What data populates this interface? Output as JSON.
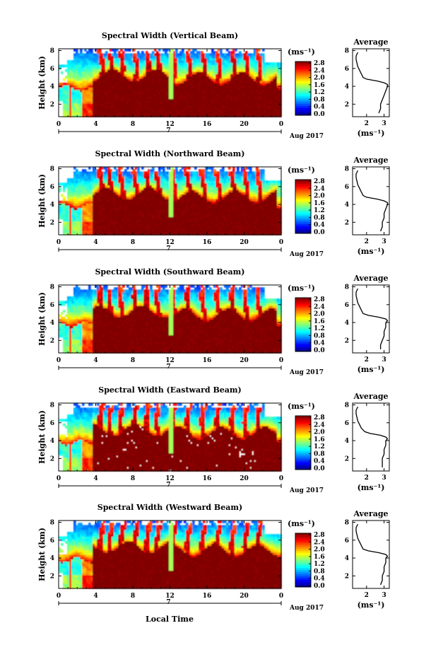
{
  "figure": {
    "bottom_xlabel": "Local Time",
    "colorbar_unit": "(ms⁻¹)",
    "average_title": "Average",
    "average_xlabel": "(ms⁻¹)"
  },
  "chart_data": [
    {
      "type": "heatmap",
      "title": "Spectral Width (Vertical Beam)",
      "ylabel": "Height (km)",
      "xlabel": "",
      "x_ticks": [
        "0",
        "4",
        "8",
        "12",
        "16",
        "20",
        "0"
      ],
      "x_range": [
        0,
        24
      ],
      "date_tick_label": "7",
      "date_label": "Aug 2017",
      "ylim": [
        0.6,
        8.2
      ],
      "y_ticks": [
        "2",
        "4",
        "6",
        "8"
      ],
      "colorbar": {
        "unit": "(ms⁻¹)",
        "ticks": [
          "0.0",
          "0.4",
          "0.8",
          "1.2",
          "1.6",
          "2.0",
          "2.4",
          "2.8"
        ],
        "range": [
          0,
          2.8
        ],
        "colormap": "jet"
      },
      "average_profile": {
        "title": "Average",
        "xlabel": "(ms⁻¹)",
        "x_ticks": [
          "2",
          "3"
        ],
        "xlim": [
          1.2,
          3.3
        ],
        "y_ticks": [
          "2",
          "4",
          "6",
          "8"
        ],
        "ylim": [
          0.6,
          8.2
        ],
        "height": [
          1.0,
          1.5,
          2.0,
          2.5,
          3.0,
          3.5,
          4.0,
          4.2,
          4.4,
          4.6,
          4.8,
          5.0,
          5.4,
          5.8,
          6.2,
          6.6,
          7.0,
          7.4,
          7.8
        ],
        "width": [
          2.7,
          2.8,
          2.8,
          2.9,
          3.0,
          3.1,
          3.2,
          3.2,
          3.0,
          2.6,
          2.0,
          1.8,
          1.7,
          1.6,
          1.5,
          1.45,
          1.4,
          1.4,
          1.5
        ]
      }
    },
    {
      "type": "heatmap",
      "title": "Spectral Width (Northward Beam)",
      "ylabel": "Height (km)",
      "xlabel": "",
      "x_ticks": [
        "0",
        "4",
        "8",
        "12",
        "16",
        "20",
        "0"
      ],
      "x_range": [
        0,
        24
      ],
      "date_tick_label": "7",
      "date_label": "Aug 2017",
      "ylim": [
        0.6,
        8.2
      ],
      "y_ticks": [
        "2",
        "4",
        "6",
        "8"
      ],
      "colorbar": {
        "unit": "(ms⁻¹)",
        "ticks": [
          "0.0",
          "0.4",
          "0.8",
          "1.2",
          "1.6",
          "2.0",
          "2.4",
          "2.8"
        ],
        "range": [
          0,
          2.8
        ],
        "colormap": "jet"
      },
      "average_profile": {
        "title": "Average",
        "xlabel": "(ms⁻¹)",
        "x_ticks": [
          "2",
          "3"
        ],
        "xlim": [
          1.2,
          3.3
        ],
        "y_ticks": [
          "2",
          "4",
          "6",
          "8"
        ],
        "ylim": [
          0.6,
          8.2
        ],
        "height": [
          1.0,
          1.5,
          2.0,
          2.5,
          3.0,
          3.5,
          4.0,
          4.2,
          4.4,
          4.6,
          4.8,
          5.0,
          5.4,
          5.8,
          6.2,
          6.6,
          7.0,
          7.4,
          7.8
        ],
        "width": [
          2.8,
          2.9,
          2.9,
          3.0,
          3.0,
          3.1,
          3.2,
          3.2,
          3.0,
          2.6,
          2.0,
          1.8,
          1.7,
          1.6,
          1.5,
          1.45,
          1.4,
          1.4,
          1.5
        ]
      }
    },
    {
      "type": "heatmap",
      "title": "Spectral Width (Southward Beam)",
      "ylabel": "Height (km)",
      "xlabel": "",
      "x_ticks": [
        "0",
        "4",
        "8",
        "12",
        "16",
        "20",
        "0"
      ],
      "x_range": [
        0,
        24
      ],
      "date_tick_label": "7",
      "date_label": "Aug 2017",
      "ylim": [
        0.6,
        8.2
      ],
      "y_ticks": [
        "2",
        "4",
        "6",
        "8"
      ],
      "colorbar": {
        "unit": "(ms⁻¹)",
        "ticks": [
          "0.0",
          "0.4",
          "0.8",
          "1.2",
          "1.6",
          "2.0",
          "2.4",
          "2.8"
        ],
        "range": [
          0,
          2.8
        ],
        "colormap": "jet"
      },
      "average_profile": {
        "title": "Average",
        "xlabel": "(ms⁻¹)",
        "x_ticks": [
          "2",
          "3"
        ],
        "xlim": [
          1.2,
          3.3
        ],
        "y_ticks": [
          "2",
          "4",
          "6",
          "8"
        ],
        "ylim": [
          0.6,
          8.2
        ],
        "height": [
          1.0,
          1.5,
          2.0,
          2.5,
          3.0,
          3.5,
          4.0,
          4.2,
          4.4,
          4.6,
          4.8,
          5.0,
          5.4,
          5.8,
          6.2,
          6.6,
          7.0,
          7.4,
          7.8
        ],
        "width": [
          2.8,
          2.8,
          2.9,
          3.0,
          3.0,
          3.1,
          3.1,
          3.2,
          3.1,
          2.7,
          2.1,
          1.8,
          1.7,
          1.6,
          1.5,
          1.45,
          1.4,
          1.4,
          1.5
        ]
      }
    },
    {
      "type": "heatmap",
      "title": "Spectral Width (Eastward Beam)",
      "ylabel": "Height (km)",
      "xlabel": "",
      "x_ticks": [
        "0",
        "4",
        "8",
        "12",
        "16",
        "20",
        "0"
      ],
      "x_range": [
        0,
        24
      ],
      "date_tick_label": "7",
      "date_label": "Aug 2017",
      "ylim": [
        0.6,
        8.2
      ],
      "y_ticks": [
        "2",
        "4",
        "6",
        "8"
      ],
      "colorbar": {
        "unit": "(ms⁻¹)",
        "ticks": [
          "0.0",
          "0.4",
          "0.8",
          "1.2",
          "1.6",
          "2.0",
          "2.4",
          "2.8"
        ],
        "range": [
          0,
          2.8
        ],
        "colormap": "jet"
      },
      "average_profile": {
        "title": "Average",
        "xlabel": "(ms⁻¹)",
        "x_ticks": [
          "2",
          "3"
        ],
        "xlim": [
          1.2,
          3.3
        ],
        "y_ticks": [
          "2",
          "4",
          "6",
          "8"
        ],
        "ylim": [
          0.6,
          8.2
        ],
        "height": [
          1.0,
          1.5,
          2.0,
          2.5,
          3.0,
          3.5,
          4.0,
          4.2,
          4.4,
          4.6,
          4.8,
          5.0,
          5.4,
          5.8,
          6.2,
          6.6,
          7.0,
          7.4,
          7.8
        ],
        "width": [
          2.9,
          2.9,
          2.9,
          3.0,
          3.0,
          3.1,
          3.1,
          3.2,
          3.1,
          2.8,
          2.2,
          1.9,
          1.7,
          1.6,
          1.5,
          1.45,
          1.4,
          1.4,
          1.5
        ]
      }
    },
    {
      "type": "heatmap",
      "title": "Spectral Width (Westward Beam)",
      "ylabel": "Height (km)",
      "xlabel": "Local Time",
      "x_ticks": [
        "0",
        "4",
        "8",
        "12",
        "16",
        "20",
        "0"
      ],
      "x_range": [
        0,
        24
      ],
      "date_tick_label": "7",
      "date_label": "Aug 2017",
      "ylim": [
        0.6,
        8.2
      ],
      "y_ticks": [
        "2",
        "4",
        "6",
        "8"
      ],
      "colorbar": {
        "unit": "(ms⁻¹)",
        "ticks": [
          "0.0",
          "0.4",
          "0.8",
          "1.2",
          "1.6",
          "2.0",
          "2.4",
          "2.8"
        ],
        "range": [
          0,
          2.8
        ],
        "colormap": "jet"
      },
      "average_profile": {
        "title": "Average",
        "xlabel": "(ms⁻¹)",
        "x_ticks": [
          "2",
          "3"
        ],
        "xlim": [
          1.2,
          3.3
        ],
        "y_ticks": [
          "2",
          "4",
          "6",
          "8"
        ],
        "ylim": [
          0.6,
          8.2
        ],
        "height": [
          1.0,
          1.5,
          2.0,
          2.5,
          3.0,
          3.5,
          4.0,
          4.2,
          4.4,
          4.6,
          4.8,
          5.0,
          5.4,
          5.8,
          6.2,
          6.6,
          7.0,
          7.4,
          7.8
        ],
        "width": [
          2.8,
          2.9,
          2.9,
          3.0,
          3.0,
          3.1,
          3.1,
          3.2,
          3.1,
          2.7,
          2.1,
          1.8,
          1.7,
          1.6,
          1.5,
          1.45,
          1.4,
          1.4,
          1.5
        ]
      }
    }
  ]
}
